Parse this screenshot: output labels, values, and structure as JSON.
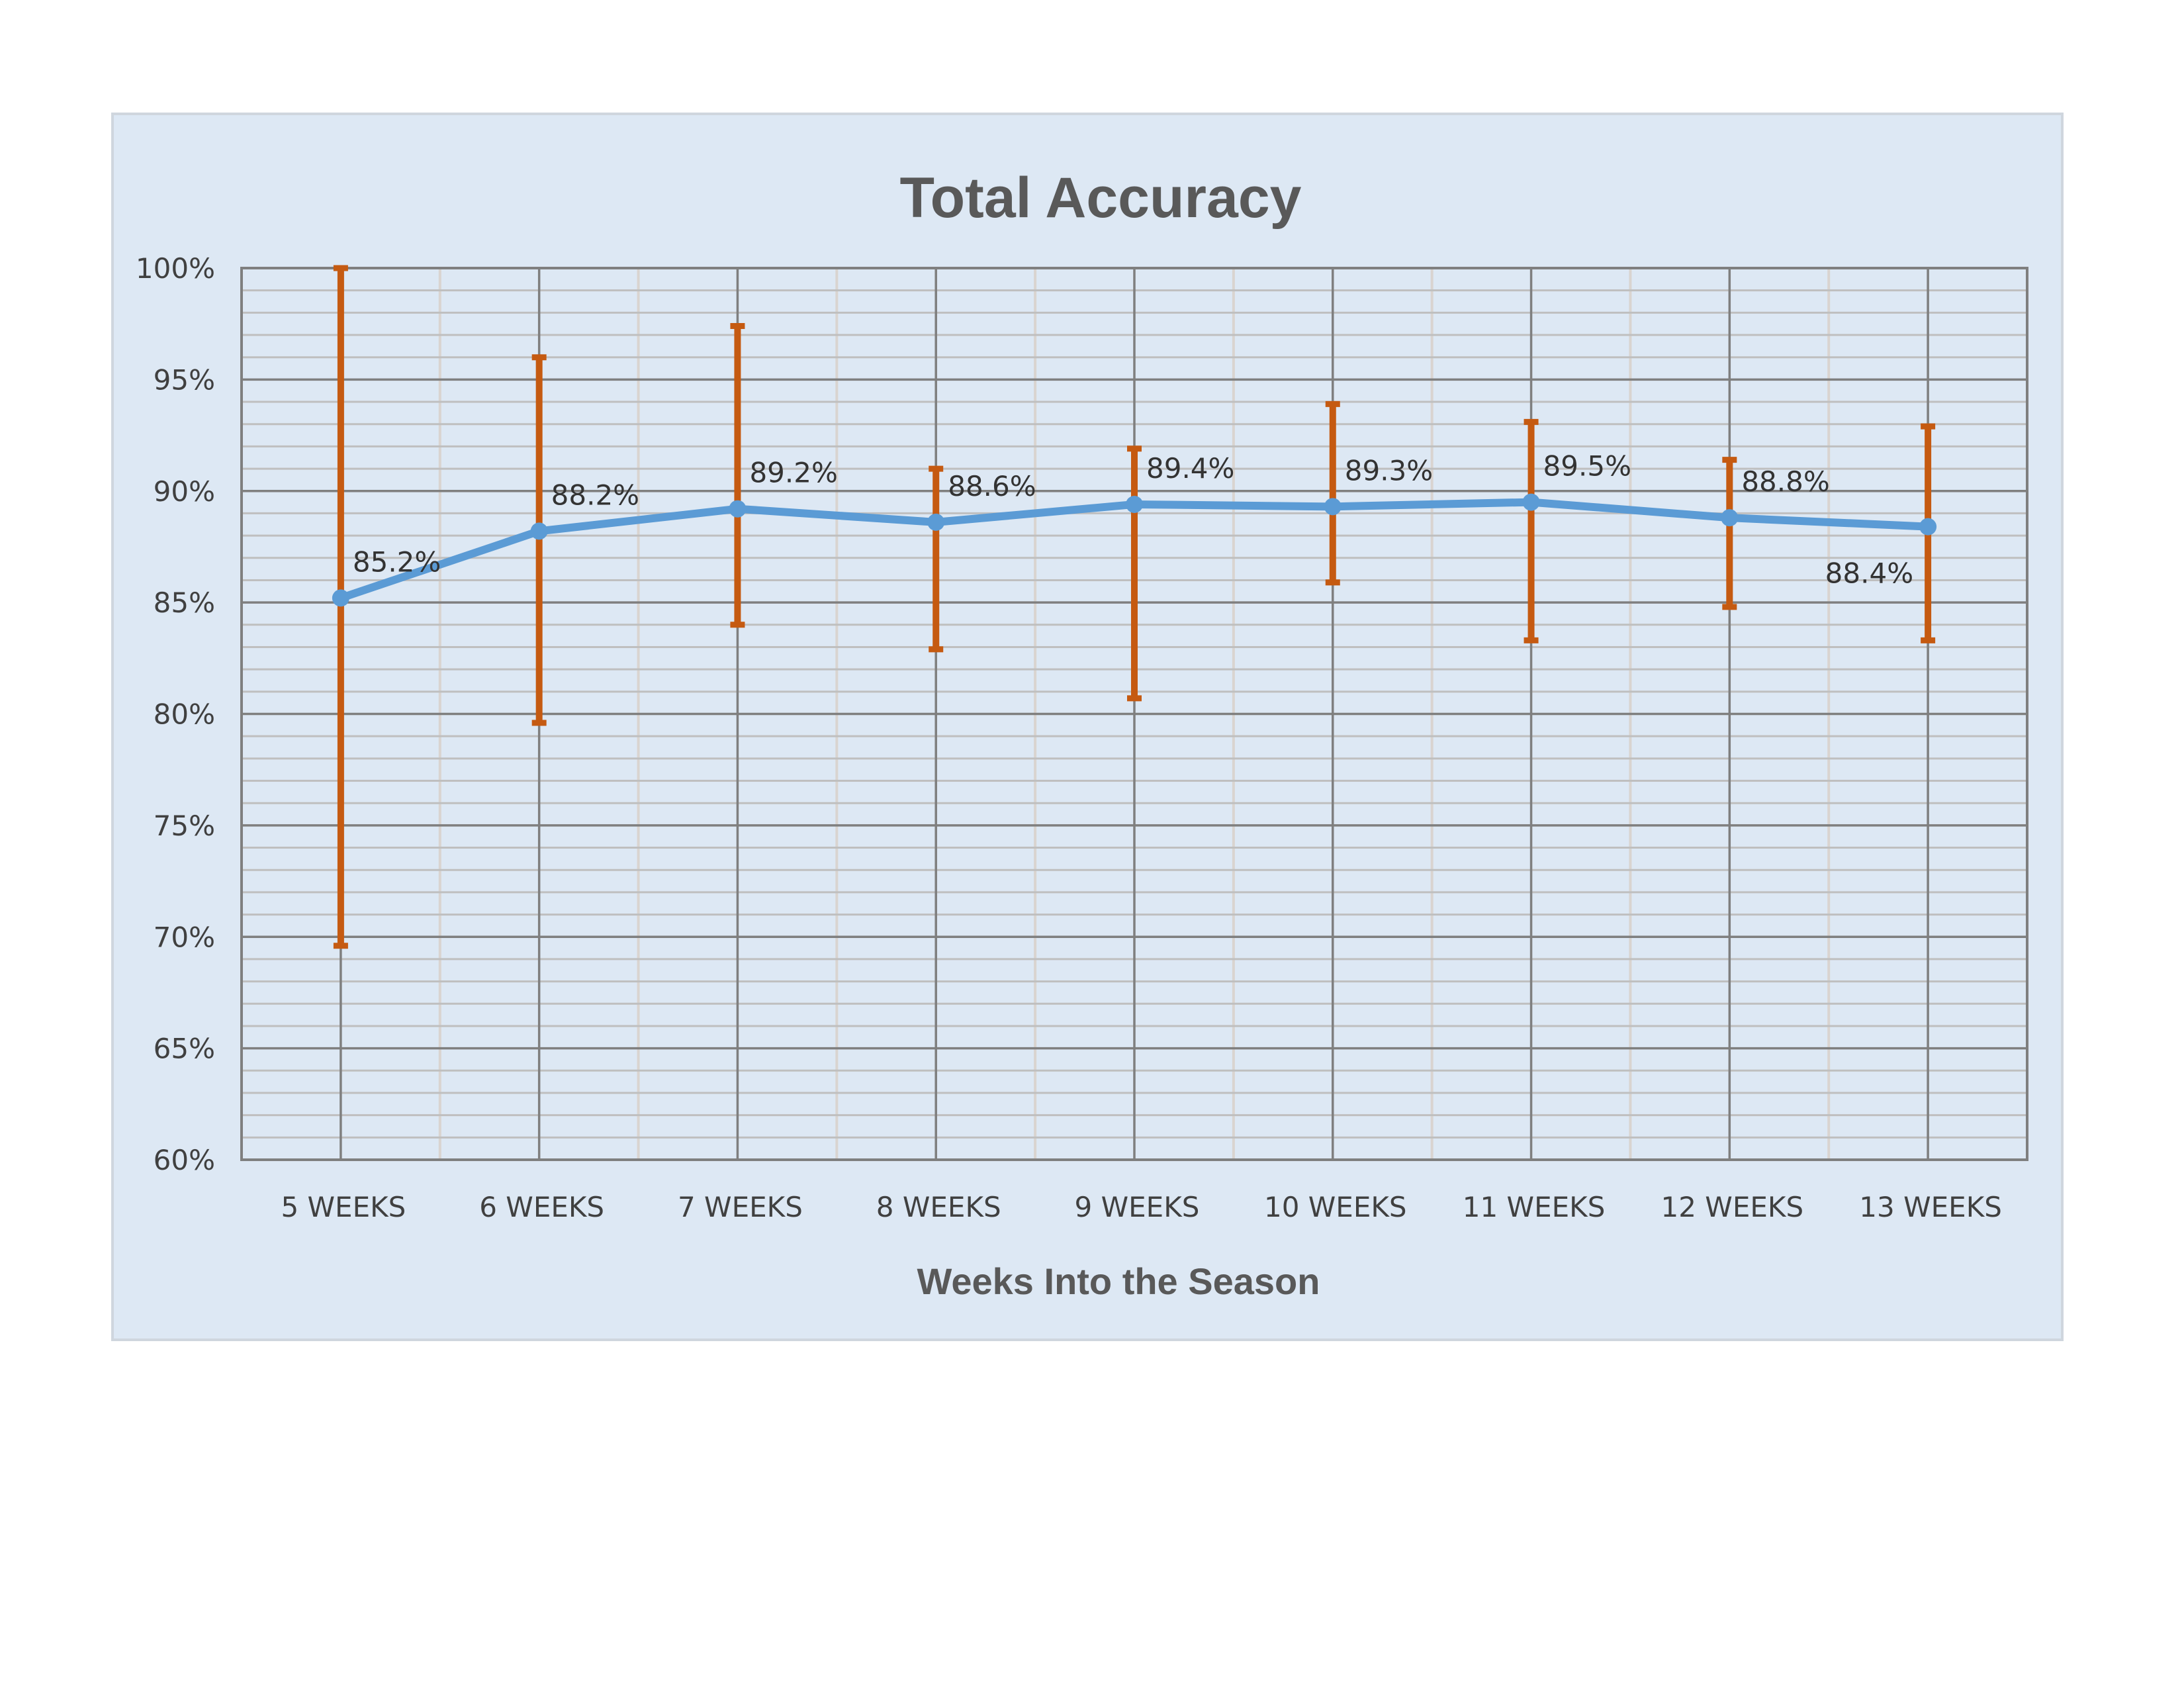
{
  "chart_data": {
    "type": "line",
    "title": "Total Accuracy",
    "xlabel": "Weeks Into the Season",
    "ylabel": "",
    "categories": [
      "5 WEEKS",
      "6 WEEKS",
      "7 WEEKS",
      "8 WEEKS",
      "9 WEEKS",
      "10 WEEKS",
      "11 WEEKS",
      "12 WEEKS",
      "13 WEEKS"
    ],
    "series": [
      {
        "values": [
          85.2,
          88.2,
          89.2,
          88.6,
          89.4,
          89.3,
          89.5,
          88.8,
          88.4
        ],
        "data_labels": [
          "85.2%",
          "88.2%",
          "89.2%",
          "88.6%",
          "89.4%",
          "89.3%",
          "89.5%",
          "88.8%",
          "88.4%"
        ],
        "error_high": [
          100.0,
          96.0,
          97.4,
          91.0,
          91.9,
          93.9,
          93.1,
          91.4,
          92.9
        ],
        "error_low": [
          69.6,
          79.6,
          84.0,
          82.9,
          80.7,
          85.9,
          83.3,
          84.8,
          83.3
        ],
        "line_color": "#5b9bd5",
        "error_bar_color": "#c55a11"
      }
    ],
    "ylim": [
      60,
      100
    ],
    "y_ticks": [
      "60%",
      "65%",
      "70%",
      "75%",
      "80%",
      "85%",
      "90%",
      "95%",
      "100%"
    ],
    "y_major_step": 5,
    "y_minor_step": 1,
    "grid": true,
    "legend": "none",
    "colors": {
      "plot_background": "#dde8f4",
      "major_grid": "#7f7f7f",
      "minor_grid": "#bfbfbf",
      "vertical_minor_grid": "#d9d4d0"
    }
  }
}
